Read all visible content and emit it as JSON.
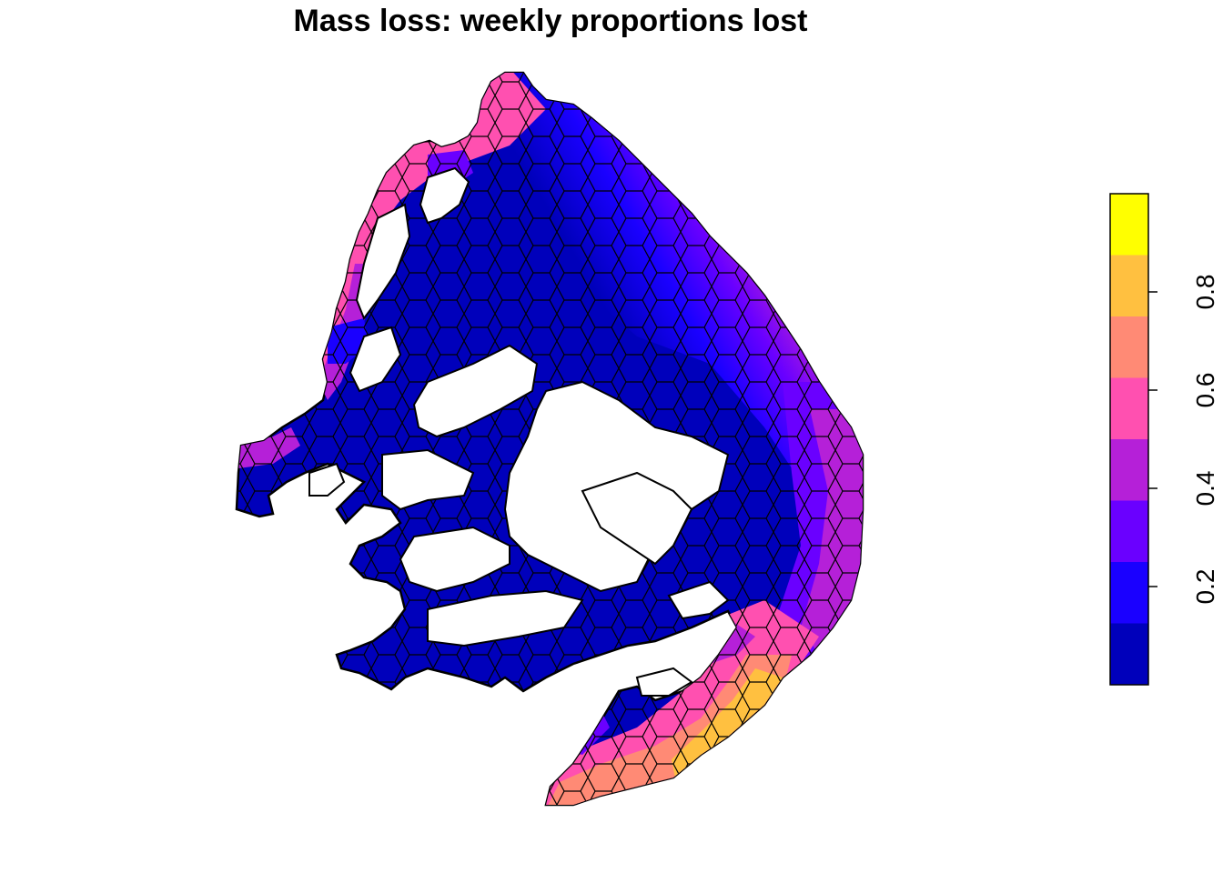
{
  "title": "Mass loss: weekly proportions lost",
  "legend": {
    "type": "continuous-binned",
    "range": [
      0,
      1
    ],
    "bins": [
      {
        "from": 0.0,
        "to": 0.125,
        "color": "#0000BB"
      },
      {
        "from": 0.125,
        "to": 0.25,
        "color": "#1A00FF"
      },
      {
        "from": 0.25,
        "to": 0.375,
        "color": "#6A00FF"
      },
      {
        "from": 0.375,
        "to": 0.5,
        "color": "#B520D8"
      },
      {
        "from": 0.5,
        "to": 0.625,
        "color": "#FF50B0"
      },
      {
        "from": 0.625,
        "to": 0.75,
        "color": "#FF8A75"
      },
      {
        "from": 0.75,
        "to": 0.875,
        "color": "#FFC040"
      },
      {
        "from": 0.875,
        "to": 1.0,
        "color": "#FFFF00"
      }
    ],
    "ticks": [
      {
        "value": 0.2,
        "label": "0.2"
      },
      {
        "value": 0.4,
        "label": "0.4"
      },
      {
        "value": 0.6,
        "label": "0.6"
      },
      {
        "value": 0.8,
        "label": "0.8"
      }
    ]
  }
}
